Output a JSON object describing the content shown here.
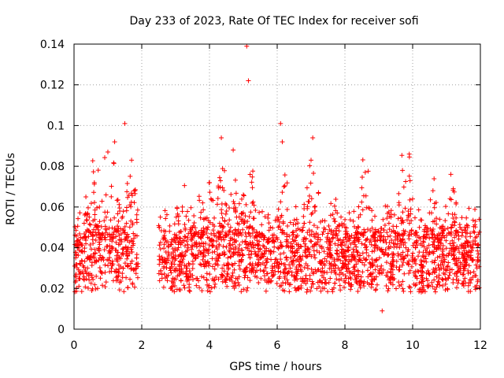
{
  "chart_data": {
    "type": "scatter",
    "title": "Day 233 of 2023, Rate Of TEC Index for receiver sofi",
    "xlabel": "GPS time / hours",
    "ylabel": "ROTI / TECUs",
    "xlim": [
      0,
      12
    ],
    "ylim": [
      0,
      0.14
    ],
    "xticks": [
      0,
      2,
      4,
      6,
      8,
      10,
      12
    ],
    "xtick_labels": [
      "0",
      "2",
      "4",
      "6",
      "8",
      "10",
      "12"
    ],
    "yticks": [
      0,
      0.02,
      0.04,
      0.06,
      0.08,
      0.1,
      0.12,
      0.14
    ],
    "ytick_labels": [
      "0",
      "0.02",
      "0.04",
      "0.06",
      "0.08",
      "0.1",
      "0.12",
      "0.14"
    ],
    "grid": true,
    "marker": "+",
    "color": "#ff0000",
    "gaps_hours": [
      [
        1.9,
        2.5
      ]
    ],
    "series": [
      {
        "name": "ROTI",
        "points": [
          [
            0.02,
            0.031
          ],
          [
            0.05,
            0.035
          ],
          [
            0.1,
            0.04
          ],
          [
            0.15,
            0.027
          ],
          [
            0.2,
            0.045
          ],
          [
            0.25,
            0.038
          ],
          [
            0.3,
            0.052
          ],
          [
            0.35,
            0.042
          ],
          [
            0.4,
            0.03
          ],
          [
            0.45,
            0.055
          ],
          [
            0.5,
            0.036
          ],
          [
            0.55,
            0.044
          ],
          [
            0.6,
            0.072
          ],
          [
            0.65,
            0.033
          ],
          [
            0.7,
            0.05
          ],
          [
            0.75,
            0.06
          ],
          [
            0.8,
            0.028
          ],
          [
            0.85,
            0.046
          ],
          [
            0.9,
            0.039
          ],
          [
            0.95,
            0.055
          ],
          [
            1.0,
            0.087
          ],
          [
            1.05,
            0.041
          ],
          [
            1.1,
            0.065
          ],
          [
            1.15,
            0.032
          ],
          [
            1.2,
            0.092
          ],
          [
            1.25,
            0.048
          ],
          [
            1.3,
            0.036
          ],
          [
            1.35,
            0.058
          ],
          [
            1.4,
            0.044
          ],
          [
            1.45,
            0.03
          ],
          [
            1.5,
            0.101
          ],
          [
            1.55,
            0.052
          ],
          [
            1.6,
            0.04
          ],
          [
            1.65,
            0.061
          ],
          [
            1.7,
            0.083
          ],
          [
            1.75,
            0.047
          ],
          [
            1.8,
            0.068
          ],
          [
            1.85,
            0.035
          ],
          [
            2.55,
            0.055
          ],
          [
            2.6,
            0.025
          ],
          [
            2.65,
            0.03
          ],
          [
            2.7,
            0.048
          ],
          [
            2.8,
            0.036
          ],
          [
            2.9,
            0.033
          ],
          [
            3.0,
            0.045
          ],
          [
            3.1,
            0.029
          ],
          [
            3.2,
            0.06
          ],
          [
            3.3,
            0.038
          ],
          [
            3.4,
            0.022
          ],
          [
            3.5,
            0.05
          ],
          [
            3.6,
            0.035
          ],
          [
            3.7,
            0.042
          ],
          [
            3.8,
            0.062
          ],
          [
            3.9,
            0.031
          ],
          [
            4.0,
            0.072
          ],
          [
            4.1,
            0.041
          ],
          [
            4.2,
            0.034
          ],
          [
            4.3,
            0.052
          ],
          [
            4.35,
            0.094
          ],
          [
            4.4,
            0.045
          ],
          [
            4.5,
            0.061
          ],
          [
            4.6,
            0.038
          ],
          [
            4.7,
            0.088
          ],
          [
            4.8,
            0.055
          ],
          [
            4.9,
            0.047
          ],
          [
            5.0,
            0.066
          ],
          [
            5.1,
            0.139
          ],
          [
            5.15,
            0.122
          ],
          [
            5.2,
            0.076
          ],
          [
            5.3,
            0.04
          ],
          [
            5.4,
            0.036
          ],
          [
            5.5,
            0.029
          ],
          [
            5.6,
            0.044
          ],
          [
            5.7,
            0.033
          ],
          [
            5.8,
            0.05
          ],
          [
            5.9,
            0.038
          ],
          [
            6.0,
            0.055
          ],
          [
            6.1,
            0.101
          ],
          [
            6.15,
            0.092
          ],
          [
            6.2,
            0.07
          ],
          [
            6.3,
            0.041
          ],
          [
            6.4,
            0.035
          ],
          [
            6.5,
            0.026
          ],
          [
            6.6,
            0.046
          ],
          [
            6.7,
            0.031
          ],
          [
            6.8,
            0.052
          ],
          [
            6.9,
            0.039
          ],
          [
            7.0,
            0.083
          ],
          [
            7.05,
            0.094
          ],
          [
            7.1,
            0.06
          ],
          [
            7.2,
            0.044
          ],
          [
            7.3,
            0.033
          ],
          [
            7.4,
            0.028
          ],
          [
            7.5,
            0.047
          ],
          [
            7.6,
            0.036
          ],
          [
            7.7,
            0.053
          ],
          [
            7.8,
            0.03
          ],
          [
            7.9,
            0.041
          ],
          [
            8.0,
            0.038
          ],
          [
            8.1,
            0.025
          ],
          [
            8.2,
            0.046
          ],
          [
            8.3,
            0.034
          ],
          [
            8.4,
            0.05
          ],
          [
            8.5,
            0.042
          ],
          [
            8.6,
            0.077
          ],
          [
            8.7,
            0.036
          ],
          [
            8.8,
            0.031
          ],
          [
            8.9,
            0.045
          ],
          [
            9.0,
            0.028
          ],
          [
            9.1,
            0.009
          ],
          [
            9.2,
            0.039
          ],
          [
            9.3,
            0.052
          ],
          [
            9.4,
            0.033
          ],
          [
            9.5,
            0.047
          ],
          [
            9.6,
            0.061
          ],
          [
            9.7,
            0.078
          ],
          [
            9.8,
            0.04
          ],
          [
            9.9,
            0.086
          ],
          [
            10.0,
            0.035
          ],
          [
            10.1,
            0.022
          ],
          [
            10.2,
            0.05
          ],
          [
            10.3,
            0.031
          ],
          [
            10.4,
            0.045
          ],
          [
            10.5,
            0.038
          ],
          [
            10.6,
            0.068
          ],
          [
            10.7,
            0.029
          ],
          [
            10.8,
            0.054
          ],
          [
            10.9,
            0.041
          ],
          [
            11.0,
            0.036
          ],
          [
            11.1,
            0.047
          ],
          [
            11.2,
            0.069
          ],
          [
            11.3,
            0.032
          ],
          [
            11.4,
            0.05
          ],
          [
            11.5,
            0.027
          ],
          [
            11.6,
            0.043
          ],
          [
            11.7,
            0.035
          ],
          [
            11.8,
            0.048
          ],
          [
            11.9,
            0.03
          ]
        ]
      }
    ]
  }
}
